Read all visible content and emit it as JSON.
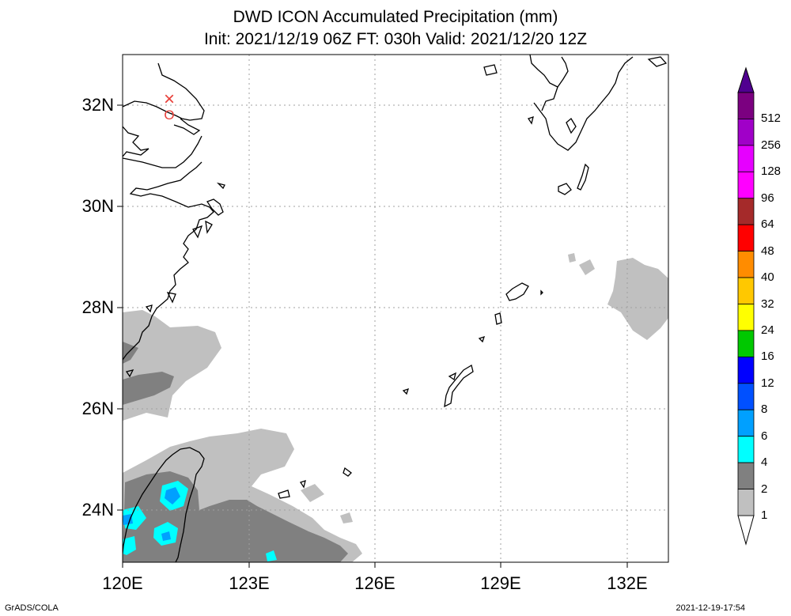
{
  "title_line1": "DWD ICON Accumulated Precipitation (mm)",
  "title_line2": "Init: 2021/12/19 06Z  FT: 030h  Valid: 2021/12/20 12Z",
  "y_labels": [
    "32N",
    "30N",
    "28N",
    "26N",
    "24N"
  ],
  "x_labels": [
    "120E",
    "123E",
    "126E",
    "129E",
    "132E"
  ],
  "colorbar": {
    "labels": [
      "512",
      "256",
      "128",
      "96",
      "64",
      "48",
      "40",
      "32",
      "24",
      "16",
      "12",
      "8",
      "6",
      "4",
      "2",
      "1"
    ],
    "colors": [
      "#7b0080",
      "#a000c8",
      "#e600ff",
      "#ff00ff",
      "#a52a2a",
      "#ff0000",
      "#ff8c00",
      "#ffc800",
      "#ffff00",
      "#00c800",
      "#0000ff",
      "#0050ff",
      "#00a0ff",
      "#00ffff",
      "#808080",
      "#c0c0c0"
    ],
    "top_color": "#500090"
  },
  "footer_left": "GrADS/COLA",
  "footer_right": "2021-12-19-17:54",
  "markers": {
    "x_symbol": "×",
    "o_symbol": "O",
    "color": "#e8403a"
  }
}
